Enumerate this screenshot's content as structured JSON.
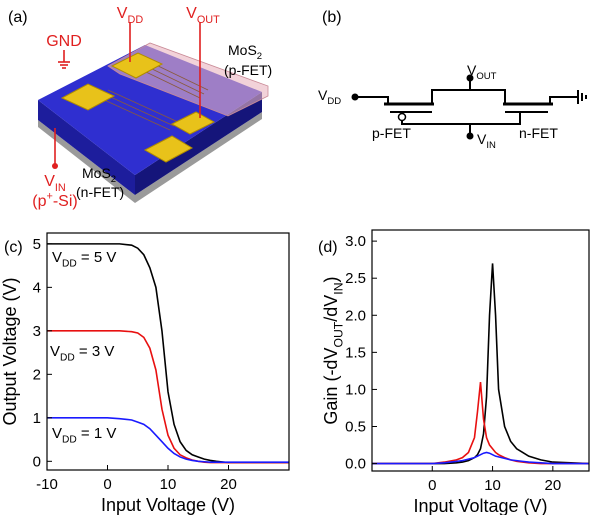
{
  "panels": [
    "(a)",
    "(b)",
    "(c)",
    "(d)"
  ],
  "device": {
    "gnd": "GND",
    "vdd": [
      {
        "t": "V"
      },
      {
        "sub": "DD"
      }
    ],
    "vout": [
      {
        "t": "V"
      },
      {
        "sub": "OUT"
      }
    ],
    "pfet": [
      {
        "t": "MoS"
      },
      {
        "sub": "2"
      }
    ],
    "pfet_note": "(p-FET)",
    "vin": [
      {
        "t": "V"
      },
      {
        "sub": "IN"
      }
    ],
    "vin_note": [
      {
        "t": "(p"
      },
      {
        "sup": "+"
      },
      {
        "t": "-Si)"
      }
    ],
    "nfet": [
      {
        "t": "MoS"
      },
      {
        "sub": "2"
      }
    ],
    "nfet_note": "(n-FET)"
  },
  "circuit": {
    "vdd": [
      {
        "t": "V"
      },
      {
        "sub": "DD"
      }
    ],
    "vout": [
      {
        "t": "V"
      },
      {
        "sub": "OUT"
      }
    ],
    "vin": [
      {
        "t": "V"
      },
      {
        "sub": "IN"
      }
    ],
    "pfet": "p-FET",
    "nfet": "n-FET"
  },
  "chart_data": [
    {
      "type": "line",
      "x_label": "Input Voltage (V)",
      "y_label": "Output Voltage (V)",
      "x": [
        -10,
        -5,
        0,
        2,
        4,
        5,
        6,
        7,
        8,
        9,
        10,
        11,
        12,
        13,
        14,
        15,
        16,
        17,
        18,
        20,
        22,
        25,
        30
      ],
      "series": [
        {
          "name": [
            {
              "t": "V"
            },
            {
              "sub": "DD"
            },
            {
              "t": " = 5 V"
            }
          ],
          "color": "#000000",
          "values": [
            5,
            5,
            5,
            5,
            4.97,
            4.9,
            4.75,
            4.45,
            4.0,
            3.0,
            1.6,
            0.85,
            0.45,
            0.25,
            0.15,
            0.1,
            0.05,
            0.02,
            0,
            -0.03,
            -0.03,
            -0.03,
            -0.03
          ]
        },
        {
          "name": [
            {
              "t": "V"
            },
            {
              "sub": "DD"
            },
            {
              "t": " = 3 V"
            }
          ],
          "color": "#e81010",
          "values": [
            3,
            3,
            3,
            3,
            2.98,
            2.95,
            2.85,
            2.6,
            2.1,
            1.2,
            0.6,
            0.3,
            0.15,
            0.08,
            0.03,
            0,
            -0.02,
            -0.03,
            -0.03,
            -0.03,
            -0.03,
            -0.03,
            -0.03
          ]
        },
        {
          "name": [
            {
              "t": "V"
            },
            {
              "sub": "DD"
            },
            {
              "t": " = 1 V"
            }
          ],
          "color": "#1a1aff",
          "values": [
            1,
            1,
            1,
            0.98,
            0.95,
            0.9,
            0.85,
            0.75,
            0.6,
            0.45,
            0.3,
            0.18,
            0.1,
            0.05,
            0.02,
            0,
            -0.01,
            -0.02,
            -0.02,
            -0.02,
            -0.02,
            -0.02,
            -0.02
          ]
        }
      ],
      "xlim": [
        -10,
        30
      ],
      "xticks": [
        -10,
        0,
        10,
        20
      ],
      "ylim": [
        -0.2,
        5.25
      ],
      "yticks": [
        0,
        1,
        2,
        3,
        4,
        5
      ],
      "grid": false
    },
    {
      "type": "line",
      "x_label": "Input Voltage (V)",
      "y_label": [
        {
          "t": "Gain (-dV"
        },
        {
          "sub": "OUT"
        },
        {
          "t": "/dV"
        },
        {
          "sub": "IN"
        },
        {
          "t": ")"
        }
      ],
      "x": [
        -10,
        0,
        2,
        4,
        5,
        6,
        7,
        7.5,
        8,
        8.5,
        9,
        9.5,
        10,
        10.5,
        11,
        12,
        13,
        14,
        15,
        16,
        18,
        20,
        26
      ],
      "series": [
        {
          "color": "#000000",
          "values": [
            0,
            0,
            0,
            0.01,
            0.02,
            0.04,
            0.08,
            0.12,
            0.2,
            0.4,
            0.9,
            2.0,
            2.7,
            2.0,
            1.0,
            0.5,
            0.3,
            0.2,
            0.15,
            0.1,
            0.05,
            0.02,
            0
          ]
        },
        {
          "color": "#e81010",
          "values": [
            0,
            0,
            0.02,
            0.05,
            0.08,
            0.15,
            0.35,
            0.7,
            1.1,
            0.6,
            0.35,
            0.25,
            0.2,
            0.15,
            0.12,
            0.08,
            0.05,
            0.03,
            0.02,
            0.01,
            0,
            0,
            0
          ]
        },
        {
          "color": "#1a1aff",
          "values": [
            0,
            0,
            0.01,
            0.03,
            0.04,
            0.06,
            0.08,
            0.1,
            0.12,
            0.14,
            0.15,
            0.14,
            0.12,
            0.1,
            0.09,
            0.07,
            0.05,
            0.04,
            0.03,
            0.02,
            0.01,
            0,
            0
          ]
        }
      ],
      "xlim": [
        -10,
        26
      ],
      "xticks": [
        0,
        10,
        20
      ],
      "ylim": [
        -0.1,
        3.15
      ],
      "yticks": [
        {
          "value": 0,
          "label": "0.0"
        },
        {
          "value": 0.5,
          "label": "0.5"
        },
        {
          "value": 1,
          "label": "1.0"
        },
        {
          "value": 1.5,
          "label": "1.5"
        },
        {
          "value": 2,
          "label": "2.0"
        },
        {
          "value": 2.5,
          "label": "2.5"
        },
        {
          "value": 3,
          "label": "3.0"
        }
      ],
      "grid": false
    }
  ]
}
